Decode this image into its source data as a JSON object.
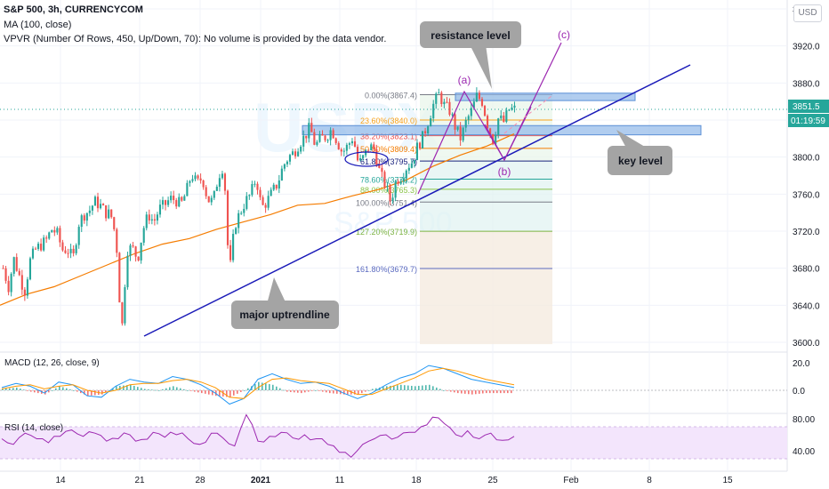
{
  "header": {
    "title": "S&P 500, 3h, CURRENCYCOM",
    "ma_label": "MA (100, close)",
    "vpvr_label": "VPVR (Number Of Rows, 450, Up/Down, 70): No volume is provided by the data vendor.",
    "currency_button": "USD"
  },
  "watermark": {
    "big": "USPX",
    "small": "S&P 500"
  },
  "annotations": {
    "resistance": "resistance level",
    "key_level": "key level",
    "uptrend": "major uptrendline",
    "wave_a": "(a)",
    "wave_b": "(b)",
    "wave_c": "(c)"
  },
  "price_badges": {
    "last": "3851.5",
    "countdown": "01:19:59"
  },
  "colors": {
    "up": "#26a69a",
    "down": "#ef5350",
    "ma": "#f57c00",
    "trendline": "#1a1ab8",
    "zone": "#90b8e8",
    "wave": "#9c27b0",
    "macd": "#2196f3",
    "signal": "#ff9800",
    "rsi": "#9c27b0",
    "rsi_band": "#f3e5fc",
    "callout": "#a4a4a4"
  },
  "fib_levels": [
    {
      "label": "0.00%(3867.4)",
      "price": 3867.4,
      "color": "#787b86"
    },
    {
      "label": "23.60%(3840.0)",
      "price": 3840.0,
      "color": "#f7a21b"
    },
    {
      "label": "38.20%(3823.1)",
      "price": 3823.1,
      "color": "#ef5350"
    },
    {
      "label": "50.00%(3809.4)",
      "price": 3809.4,
      "color": "#f57c00"
    },
    {
      "label": "61.80%(3795.7)",
      "price": 3795.7,
      "color": "#1a237e"
    },
    {
      "label": "78.60%(3776.2)",
      "price": 3776.2,
      "color": "#26a69a"
    },
    {
      "label": "88.00%(3765.3)",
      "price": 3765.3,
      "color": "#8bc34a"
    },
    {
      "label": "100.00%(3751.4)",
      "price": 3751.4,
      "color": "#787b86"
    },
    {
      "label": "127.20%(3719.9)",
      "price": 3719.9,
      "color": "#7cb342"
    },
    {
      "label": "161.80%(3679.7)",
      "price": 3679.7,
      "color": "#5c6bc0"
    }
  ],
  "chart_data": [
    {
      "type": "candlestick",
      "title": "S&P 500, 3h, CURRENCYCOM",
      "x_ticks": [
        "14",
        "21",
        "28",
        "2021",
        "11",
        "18",
        "25",
        "Feb",
        "8",
        "15"
      ],
      "y_ticks": [
        3600.0,
        3640.0,
        3680.0,
        3720.0,
        3760.0,
        3800.0,
        3840.0,
        3880.0,
        3920.0,
        3960.0
      ],
      "ylim": [
        3595,
        3975
      ],
      "last_price": 3851.5,
      "price_path": [
        [
          3680,
          3660
        ],
        [
          3690,
          3672
        ],
        [
          3655,
          3688
        ],
        [
          3700,
          3705
        ],
        [
          3710,
          3722
        ],
        [
          3718,
          3700
        ],
        [
          3700,
          3690
        ],
        [
          3728,
          3738
        ],
        [
          3742,
          3752
        ],
        [
          3748,
          3740
        ],
        [
          3738,
          3712
        ],
        [
          3608,
          3700
        ],
        [
          3702,
          3690
        ],
        [
          3722,
          3738
        ],
        [
          3730,
          3744
        ],
        [
          3748,
          3755
        ],
        [
          3754,
          3748
        ],
        [
          3762,
          3782
        ],
        [
          3771,
          3778
        ],
        [
          3754,
          3752
        ],
        [
          3780,
          3792
        ],
        [
          3671,
          3726
        ],
        [
          3740,
          3752
        ],
        [
          3760,
          3778
        ],
        [
          3745,
          3752
        ],
        [
          3762,
          3772
        ],
        [
          3790,
          3800
        ],
        [
          3805,
          3815
        ],
        [
          3822,
          3832
        ],
        [
          3812,
          3820
        ],
        [
          3822,
          3830
        ],
        [
          3818,
          3805
        ],
        [
          3812,
          3822
        ],
        [
          3792,
          3800
        ],
        [
          3812,
          3808
        ],
        [
          3782,
          3770
        ],
        [
          3752,
          3775
        ],
        [
          3780,
          3790
        ],
        [
          3795,
          3812
        ],
        [
          3822,
          3840
        ],
        [
          3858,
          3868
        ],
        [
          3855,
          3850
        ],
        [
          3832,
          3820
        ],
        [
          3838,
          3850
        ],
        [
          3866,
          3860
        ],
        [
          3835,
          3818
        ],
        [
          3842,
          3838
        ],
        [
          3851.5,
          3851.5
        ]
      ],
      "moving_average": {
        "name": "MA (100, close)",
        "points": [
          [
            3640,
            3652
          ],
          [
            3660,
            3672
          ],
          [
            3684,
            3696
          ],
          [
            3706,
            3712
          ],
          [
            3722,
            3730
          ],
          [
            3738,
            3748
          ],
          [
            3750,
            3758
          ],
          [
            3765,
            3775
          ],
          [
            3790,
            3802
          ],
          [
            3812,
            3825
          ]
        ]
      }
    },
    {
      "type": "line",
      "title": "MACD (12, 26, close, 9)",
      "y_ticks": [
        0.0,
        20.0
      ],
      "ylim": [
        -10,
        25
      ],
      "series": [
        {
          "name": "MACD",
          "values": [
            2,
            5,
            3,
            -2,
            6,
            4,
            -4,
            -5,
            3,
            8,
            6,
            5,
            10,
            8,
            4,
            -2,
            -10,
            -6,
            8,
            12,
            8,
            5,
            6,
            3,
            -2,
            -6,
            -2,
            4,
            9,
            12,
            18,
            16,
            12,
            8,
            6,
            4,
            2
          ]
        },
        {
          "name": "Signal",
          "values": [
            1,
            3,
            4,
            1,
            3,
            4,
            0,
            -2,
            0,
            4,
            5,
            5,
            7,
            8,
            6,
            2,
            -5,
            -6,
            2,
            8,
            9,
            7,
            6,
            5,
            1,
            -3,
            -3,
            1,
            5,
            9,
            14,
            16,
            14,
            11,
            8,
            6,
            4
          ]
        }
      ]
    },
    {
      "type": "line",
      "title": "RSI (14, close)",
      "name": "RSI",
      "y_ticks": [
        40.0,
        80.0
      ],
      "ylim": [
        25,
        90
      ],
      "values": [
        55,
        48,
        62,
        55,
        50,
        58,
        66,
        58,
        62,
        52,
        55,
        60,
        54,
        63,
        57,
        60,
        55,
        48,
        62,
        56,
        46,
        85,
        52,
        58,
        63,
        56,
        60,
        55,
        48,
        38,
        32,
        48,
        55,
        60,
        57,
        63,
        70,
        82,
        74,
        60,
        65,
        55,
        62,
        53,
        58
      ]
    }
  ]
}
